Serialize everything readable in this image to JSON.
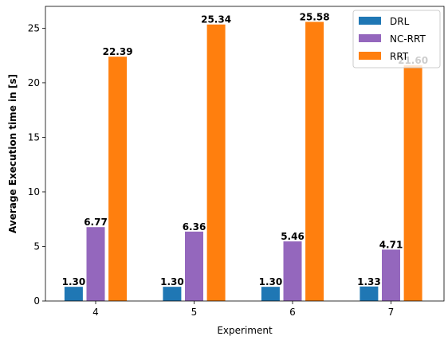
{
  "chart_data": {
    "type": "bar",
    "xlabel": "Experiment",
    "ylabel": "Average Execution time in [s]",
    "categories": [
      "4",
      "5",
      "6",
      "7"
    ],
    "ylim": [
      0,
      27
    ],
    "yticks": [
      0,
      5,
      10,
      15,
      20,
      25
    ],
    "legend_position": "top-right",
    "series": [
      {
        "name": "DRL",
        "color": "#1f77b4",
        "values": [
          1.3,
          1.3,
          1.3,
          1.33
        ],
        "labels": [
          "1.30",
          "1.30",
          "1.30",
          "1.33"
        ]
      },
      {
        "name": "NC-RRT",
        "color": "#9467bd",
        "values": [
          6.77,
          6.36,
          5.46,
          4.71
        ],
        "labels": [
          "6.77",
          "6.36",
          "5.46",
          "4.71"
        ]
      },
      {
        "name": "RRT",
        "color": "#ff7f0e",
        "values": [
          22.39,
          25.34,
          25.58,
          21.6
        ],
        "labels": [
          "22.39",
          "25.34",
          "25.58",
          "21.60"
        ]
      }
    ]
  }
}
